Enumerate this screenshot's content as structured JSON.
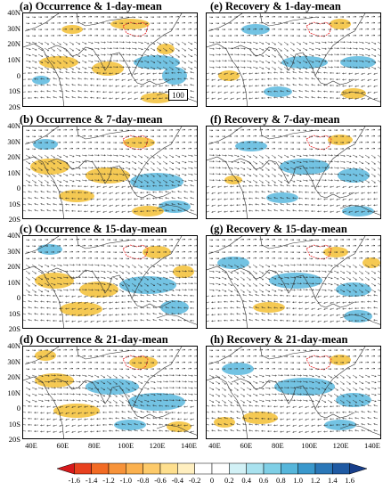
{
  "panels": [
    {
      "id": "a",
      "title": "(a) Occurrence & 1-day-mean"
    },
    {
      "id": "b",
      "title": "(b)  Occurrence & 7-day-mean"
    },
    {
      "id": "c",
      "title": "(c)  Occurrence & 15-day-mean"
    },
    {
      "id": "d",
      "title": "(d)  Occurrence & 21-day-mean"
    },
    {
      "id": "e",
      "title": "(e)  Recovery & 1-day-mean"
    },
    {
      "id": "f",
      "title": "(f)  Recovery & 7-day-mean"
    },
    {
      "id": "g",
      "title": "(g)  Recovery & 15-day-mean"
    },
    {
      "id": "h",
      "title": "(h)  Recovery & 21-day-mean"
    }
  ],
  "lat_labels": [
    "40N",
    "30N",
    "20N",
    "10N",
    "0",
    "10S",
    "20S"
  ],
  "lon_labels": [
    "40E",
    "60E",
    "80E",
    "100E",
    "120E",
    "140E"
  ],
  "reference_vector": "100",
  "colorbar": {
    "ticks": [
      "-1.6",
      "-1.4",
      "-1.2",
      "-1.0",
      "-0.8",
      "-0.6",
      "-0.4",
      "-0.2",
      "0",
      "0.2",
      "0.4",
      "0.6",
      "0.8",
      "1.0",
      "1.2",
      "1.4",
      "1.6"
    ],
    "colors": [
      "#d7191c",
      "#e8411f",
      "#f26b24",
      "#f7933a",
      "#fbb14f",
      "#fdca6a",
      "#fedf8e",
      "#ffefc0",
      "#ffffff",
      "#ffffff",
      "#d2f1f6",
      "#a9e2ef",
      "#7fcfe6",
      "#56b6db",
      "#3a98cc",
      "#2a77b8",
      "#1f5aa3",
      "#173e8a"
    ]
  },
  "colors": {
    "warm": "#f3bf35",
    "cool": "#5ab8de",
    "plateau": "#e8282b"
  }
}
